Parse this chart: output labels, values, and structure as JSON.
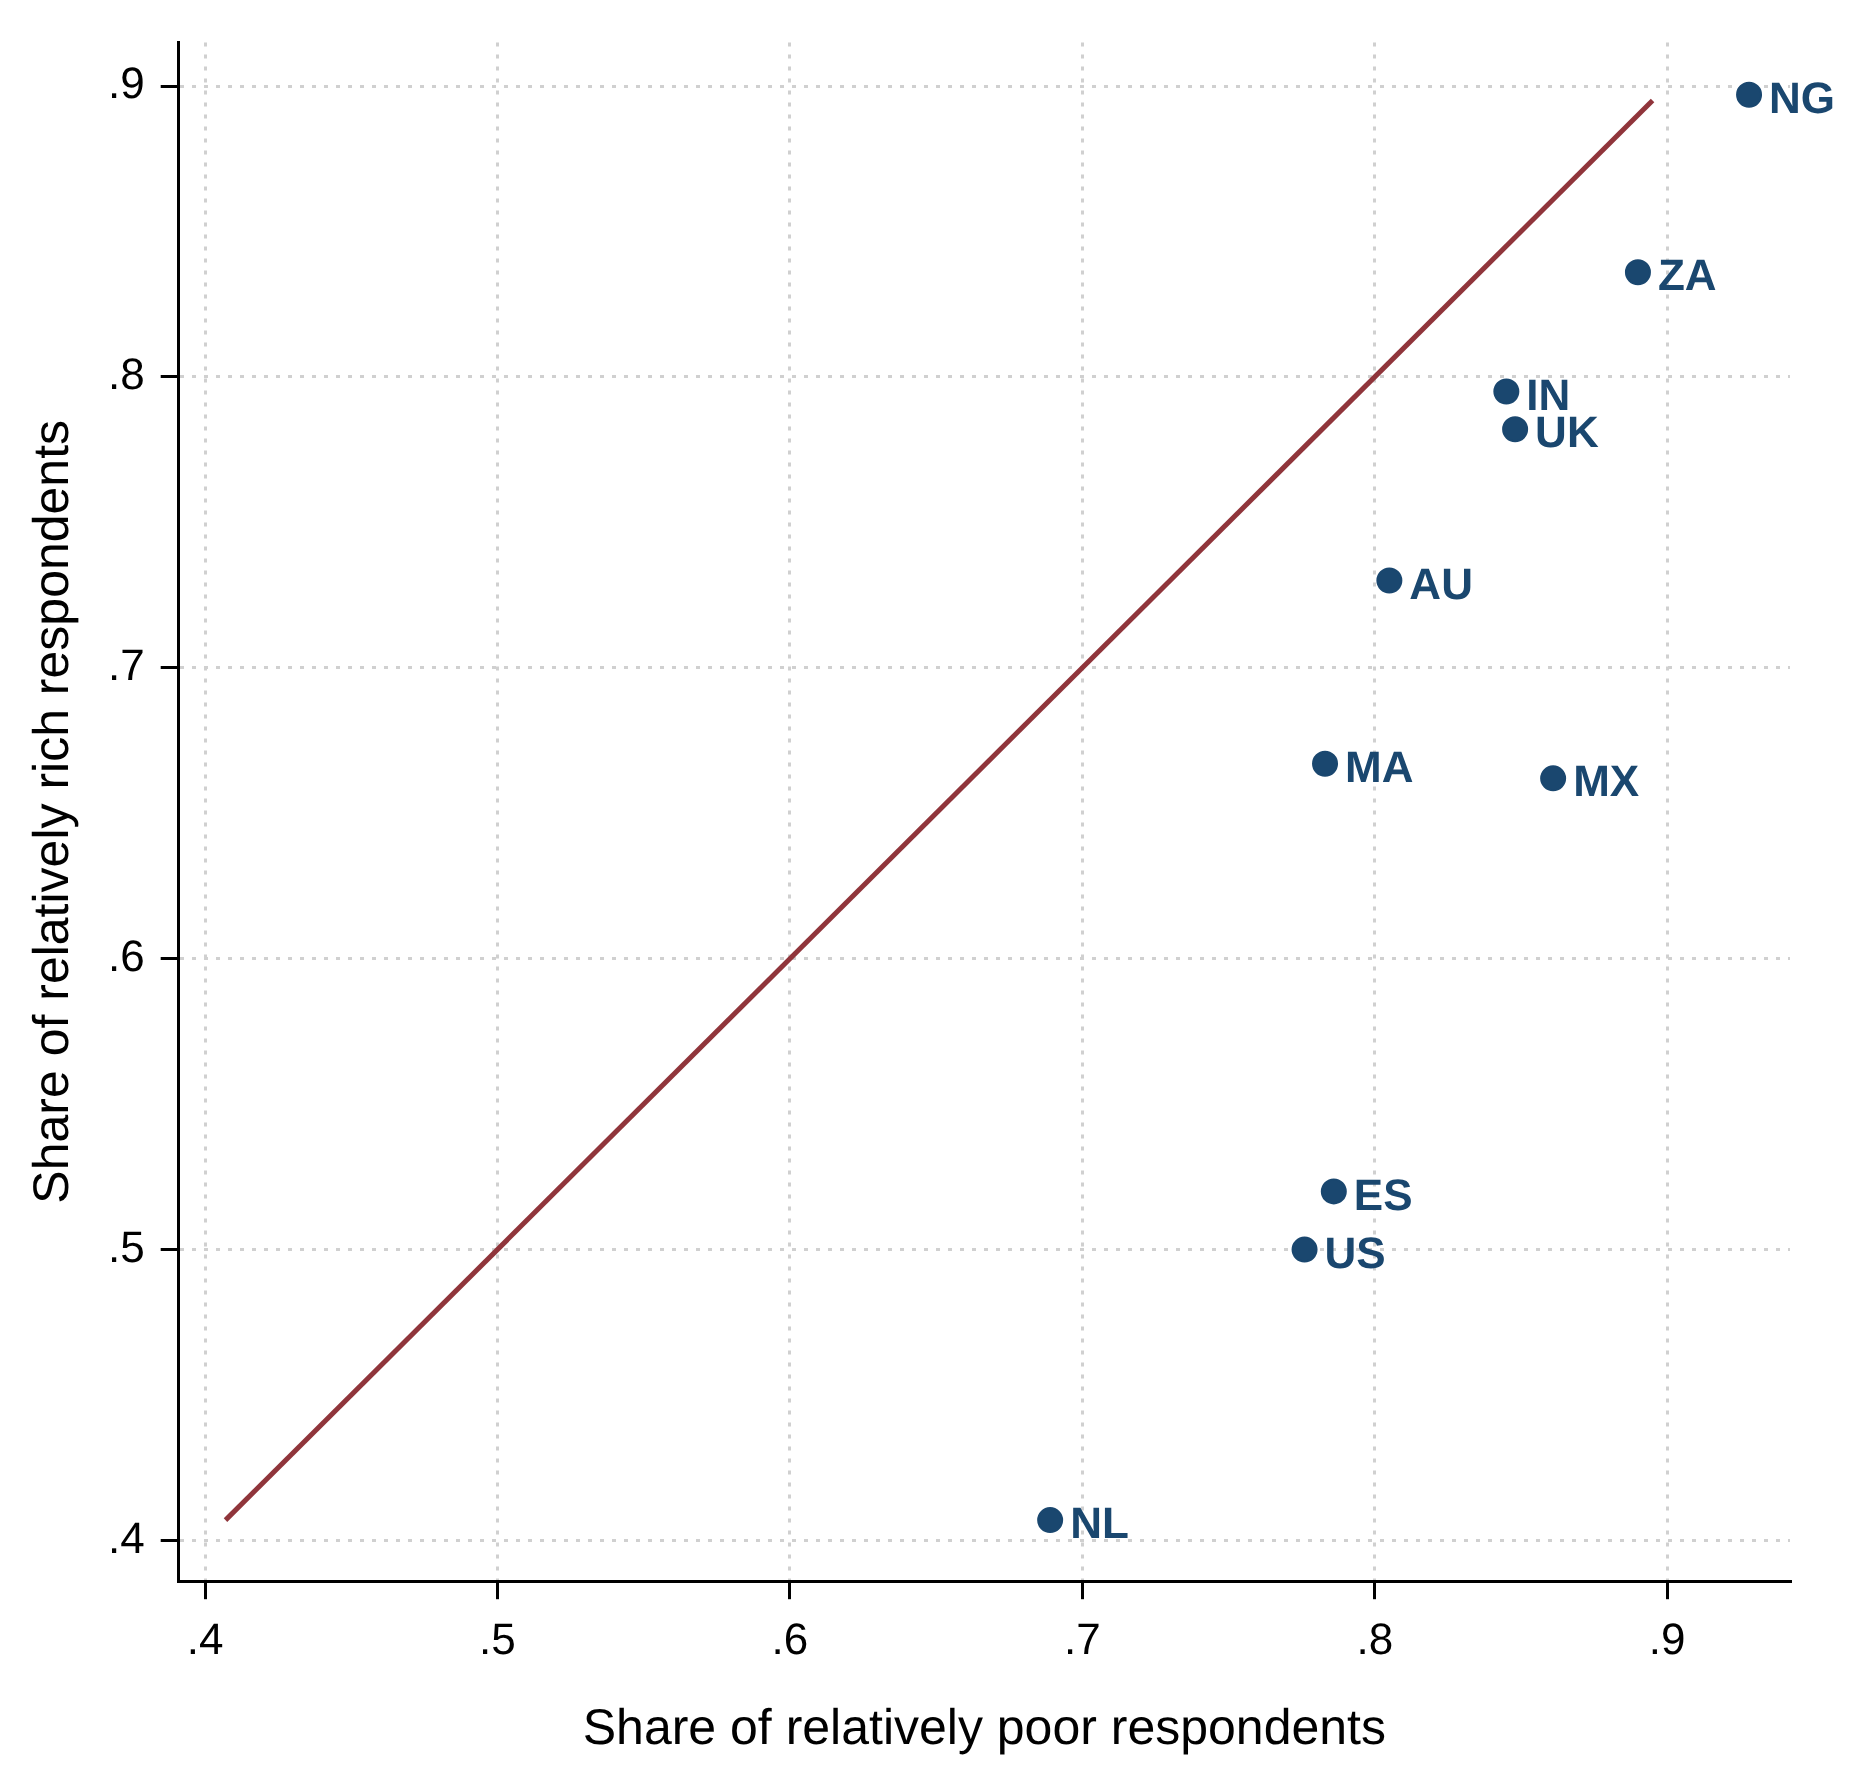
{
  "chart_data": {
    "type": "scatter",
    "xlabel": "Share of relatively poor respondents",
    "ylabel": "Share of relatively rich respondents",
    "x": [
      0.928,
      0.89,
      0.845,
      0.848,
      0.805,
      0.783,
      0.861,
      0.786,
      0.776,
      0.689
    ],
    "series": [
      {
        "color": "#1a476f",
        "values": [
          0.897,
          0.836,
          0.795,
          0.782,
          0.73,
          0.667,
          0.662,
          0.52,
          0.5,
          0.407
        ]
      },
      {
        "type": "line",
        "color": "#90353b",
        "x": [
          0.407,
          0.895
        ],
        "values": [
          0.407,
          0.895
        ],
        "marker": "none"
      }
    ],
    "annotations": [
      {
        "text": "NG",
        "x": 0.928,
        "y": 0.897
      },
      {
        "text": "ZA",
        "x": 0.89,
        "y": 0.836
      },
      {
        "text": "IN",
        "x": 0.845,
        "y": 0.795
      },
      {
        "text": "UK",
        "x": 0.848,
        "y": 0.782
      },
      {
        "text": "AU",
        "x": 0.805,
        "y": 0.73
      },
      {
        "text": "MA",
        "x": 0.783,
        "y": 0.667
      },
      {
        "text": "MX",
        "x": 0.861,
        "y": 0.662
      },
      {
        "text": "ES",
        "x": 0.786,
        "y": 0.52
      },
      {
        "text": "US",
        "x": 0.776,
        "y": 0.5
      },
      {
        "text": "NL",
        "x": 0.689,
        "y": 0.407
      }
    ],
    "xlim": [
      0.391,
      0.942
    ],
    "ylim": [
      0.386,
      0.915
    ],
    "xticks": [
      {
        "value": 0.4,
        "label": ".4"
      },
      {
        "value": 0.5,
        "label": ".5"
      },
      {
        "value": 0.6,
        "label": ".6"
      },
      {
        "value": 0.7,
        "label": ".7"
      },
      {
        "value": 0.8,
        "label": ".8"
      },
      {
        "value": 0.9,
        "label": ".9"
      }
    ],
    "yticks": [
      {
        "value": 0.4,
        "label": ".4"
      },
      {
        "value": 0.5,
        "label": ".5"
      },
      {
        "value": 0.6,
        "label": ".6"
      },
      {
        "value": 0.7,
        "label": ".7"
      },
      {
        "value": 0.8,
        "label": ".8"
      },
      {
        "value": 0.9,
        "label": ".9"
      }
    ],
    "grid": true,
    "legend": false,
    "marker": "circle"
  }
}
